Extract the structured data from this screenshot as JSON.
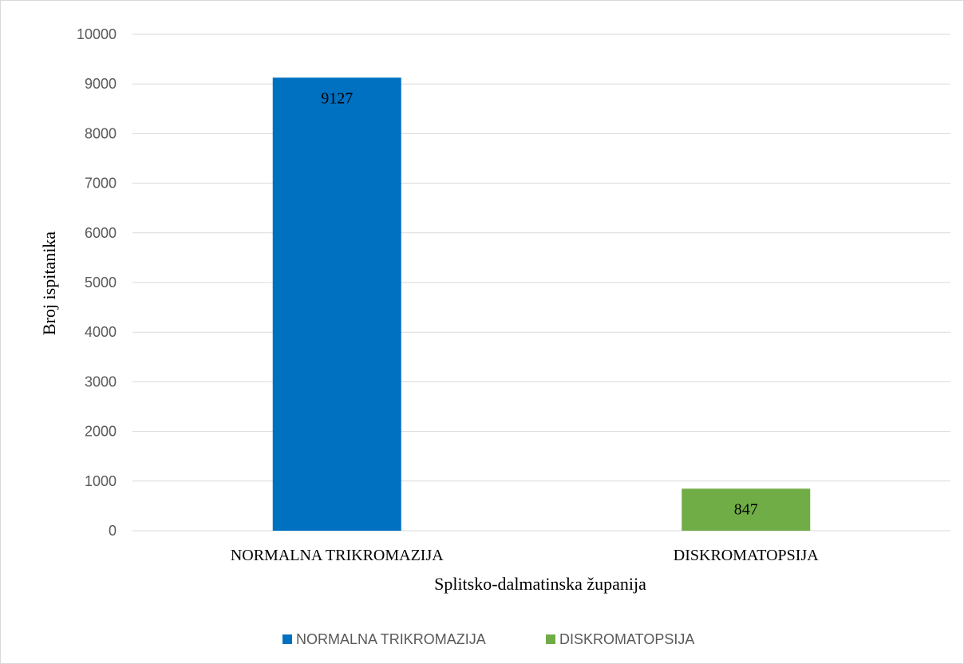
{
  "chart_data": {
    "type": "bar",
    "categories": [
      "NORMALNA TRIKROMAZIJA",
      "DISKROMATOPSIJA"
    ],
    "values": [
      9127,
      847
    ],
    "data_labels": [
      "9127",
      "847"
    ],
    "colors": [
      "#0070C0",
      "#70AD47"
    ],
    "xlabel": "Splitsko-dalmatinska županija",
    "ylabel": "Broj ispitanika",
    "ylim": [
      0,
      10000
    ],
    "yticks": [
      "0",
      "1000",
      "2000",
      "3000",
      "4000",
      "5000",
      "6000",
      "7000",
      "8000",
      "9000",
      "10000"
    ],
    "grid": true,
    "legend": {
      "position": "bottom",
      "entries": [
        {
          "label": "NORMALNA TRIKROMAZIJA",
          "color": "#0070C0"
        },
        {
          "label": "DISKROMATOPSIJA",
          "color": "#70AD47"
        }
      ]
    }
  }
}
